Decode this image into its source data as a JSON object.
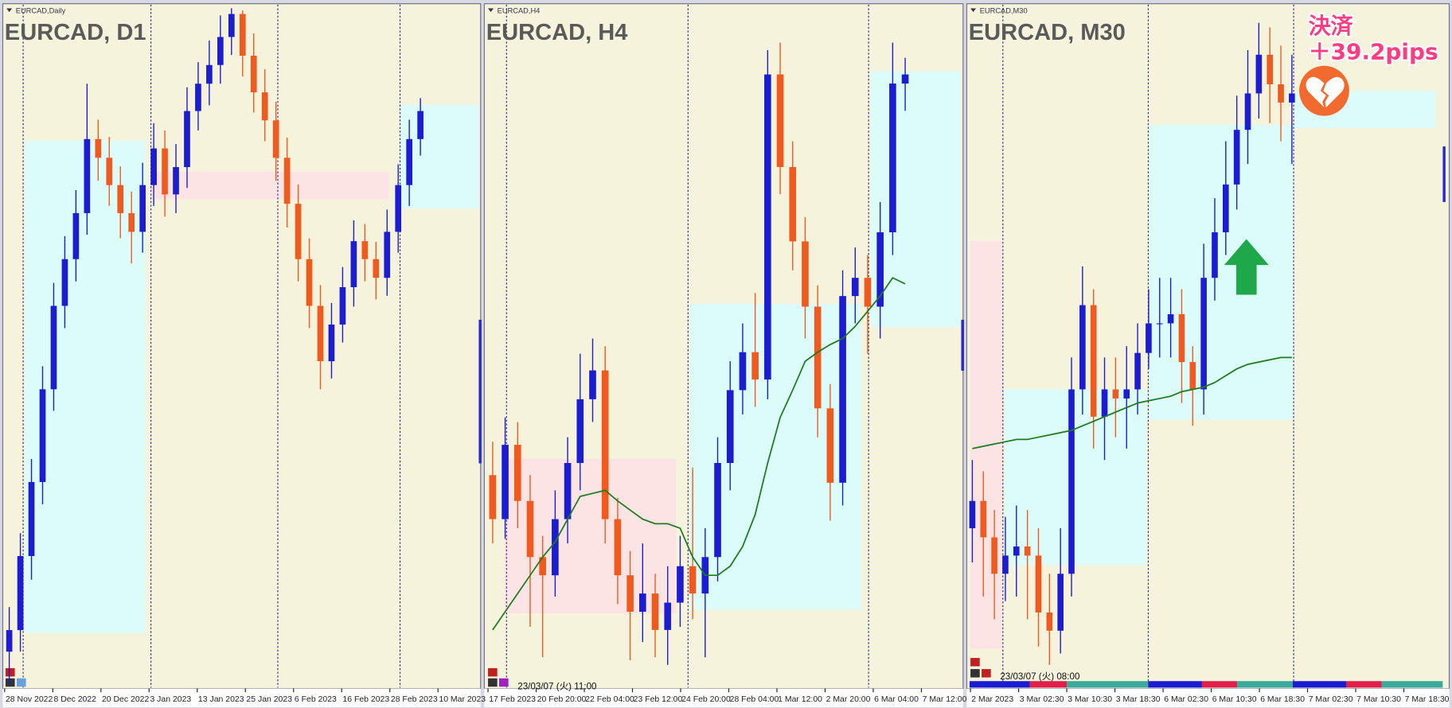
{
  "chart_data": [
    {
      "type": "candlestick",
      "label": "EURCAD,Daily",
      "title": "EURCAD, D1",
      "x_labels": [
        "28 Nov 2022",
        "8 Dec 2022",
        "20 Dec 2022",
        "3 Jan 2023",
        "13 Jan 2023",
        "25 Jan 2023",
        "6 Feb 2023",
        "16 Feb 2023",
        "28 Feb 2023",
        "10 Mar 2023"
      ],
      "ylim": [
        1.38,
        1.475
      ],
      "colors": {
        "up": "#1c1cd2",
        "down": "#f05a1e"
      },
      "open": [
        1.385,
        1.388,
        1.3983,
        1.4086,
        1.4215,
        1.4331,
        1.4396,
        1.446,
        1.4563,
        1.4537,
        1.4499,
        1.446,
        1.4434,
        1.4499,
        1.455,
        1.4486,
        1.4524,
        1.4602,
        1.464,
        1.4666,
        1.4705,
        1.4737,
        1.4679,
        1.4628,
        1.4589,
        1.4537,
        1.4473,
        1.4396,
        1.4331,
        1.4254,
        1.4305,
        1.4357,
        1.4421,
        1.4396,
        1.437,
        1.4434,
        1.4499,
        1.4563
      ],
      "high": [
        1.3912,
        1.4015,
        1.4118,
        1.4247,
        1.4363,
        1.4428,
        1.4492,
        1.464,
        1.459,
        1.4566,
        1.4525,
        1.449,
        1.453,
        1.4585,
        1.4575,
        1.4556,
        1.4635,
        1.467,
        1.47,
        1.4735,
        1.4745,
        1.4742,
        1.471,
        1.466,
        1.4615,
        1.4565,
        1.45,
        1.4425,
        1.436,
        1.4335,
        1.4385,
        1.445,
        1.4445,
        1.442,
        1.4465,
        1.4528,
        1.459,
        1.462
      ],
      "low": [
        1.3805,
        1.385,
        1.395,
        1.4055,
        1.4185,
        1.43,
        1.4365,
        1.443,
        1.4505,
        1.447,
        1.4425,
        1.439,
        1.4405,
        1.447,
        1.4455,
        1.446,
        1.4495,
        1.4575,
        1.461,
        1.464,
        1.468,
        1.465,
        1.46,
        1.456,
        1.4505,
        1.444,
        1.4365,
        1.43,
        1.4215,
        1.423,
        1.428,
        1.433,
        1.4365,
        1.434,
        1.4345,
        1.4405,
        1.447,
        1.454
      ],
      "close": [
        1.388,
        1.3983,
        1.4086,
        1.4215,
        1.4331,
        1.4396,
        1.446,
        1.4563,
        1.4537,
        1.4499,
        1.446,
        1.4434,
        1.4499,
        1.455,
        1.4486,
        1.4524,
        1.4602,
        1.464,
        1.4666,
        1.4705,
        1.4737,
        1.4679,
        1.4628,
        1.4589,
        1.4537,
        1.4473,
        1.4396,
        1.4331,
        1.4254,
        1.4305,
        1.4357,
        1.4421,
        1.4396,
        1.437,
        1.4434,
        1.4499,
        1.4563,
        1.4602
      ]
    },
    {
      "type": "candlestick",
      "label": "EURCAD,H4",
      "title": "EURCAD, H4",
      "timestamp": "23/03/07 (火) 11:00",
      "x_labels": [
        "17 Feb 2023",
        "20 Feb 20:00",
        "22 Feb 04:00",
        "23 Feb 12:00",
        "24 Feb 20:00",
        "28 Feb 04:00",
        "1 Mar 12:00",
        "2 Mar 20:00",
        "6 Mar 04:00",
        "7 Mar 12:00"
      ],
      "ylim": [
        1.43,
        1.475
      ],
      "colors": {
        "up": "#1c1cd2",
        "down": "#f05a1e"
      },
      "ma_color": "#1e7a1e",
      "open": [
        1.444,
        1.4411,
        1.446,
        1.4423,
        1.4386,
        1.4374,
        1.4411,
        1.4448,
        1.449,
        1.4509,
        1.4411,
        1.4374,
        1.435,
        1.4362,
        1.4338,
        1.4356,
        1.438,
        1.4362,
        1.4386,
        1.4448,
        1.4496,
        1.4521,
        1.4503,
        1.4704,
        1.4643,
        1.4594,
        1.4551,
        1.4484,
        1.4435,
        1.4558,
        1.457,
        1.4551,
        1.46,
        1.4698
      ],
      "high": [
        1.4462,
        1.4478,
        1.4475,
        1.444,
        1.44,
        1.443,
        1.4465,
        1.452,
        1.453,
        1.4525,
        1.4425,
        1.439,
        1.4395,
        1.4375,
        1.438,
        1.44,
        1.4445,
        1.4405,
        1.4465,
        1.4515,
        1.454,
        1.456,
        1.472,
        1.4725,
        1.466,
        1.461,
        1.4565,
        1.45,
        1.4575,
        1.459,
        1.4585,
        1.462,
        1.4725,
        1.4715
      ],
      "low": [
        1.4395,
        1.4398,
        1.4405,
        1.434,
        1.432,
        1.436,
        1.4395,
        1.443,
        1.4475,
        1.4395,
        1.4355,
        1.4318,
        1.433,
        1.432,
        1.4315,
        1.434,
        1.4345,
        1.432,
        1.437,
        1.443,
        1.448,
        1.4485,
        1.449,
        1.4625,
        1.4575,
        1.453,
        1.4465,
        1.441,
        1.442,
        1.454,
        1.452,
        1.453,
        1.4585,
        1.468
      ],
      "close": [
        1.4411,
        1.446,
        1.4423,
        1.4386,
        1.4374,
        1.4411,
        1.4448,
        1.449,
        1.4509,
        1.4411,
        1.4374,
        1.435,
        1.4362,
        1.4338,
        1.4356,
        1.438,
        1.4362,
        1.4386,
        1.4448,
        1.4496,
        1.4521,
        1.4503,
        1.4704,
        1.4643,
        1.4594,
        1.4551,
        1.4484,
        1.4435,
        1.4558,
        1.457,
        1.4551,
        1.46,
        1.4698,
        1.4704
      ],
      "ma": [
        1.4338,
        1.435,
        1.4362,
        1.4374,
        1.4386,
        1.4396,
        1.4411,
        1.4426,
        1.4428,
        1.443,
        1.4423,
        1.4417,
        1.4411,
        1.4408,
        1.4408,
        1.4405,
        1.4386,
        1.4374,
        1.4374,
        1.438,
        1.4393,
        1.4414,
        1.4448,
        1.4478,
        1.4496,
        1.4515,
        1.4521,
        1.4526,
        1.453,
        1.4538,
        1.4548,
        1.4558,
        1.457,
        1.4566
      ]
    },
    {
      "type": "candlestick",
      "label": "EURCAD,M30",
      "title": "EURCAD, M30",
      "timestamp": "23/03/07 (火) 08:00",
      "annotation": [
        "決済",
        "＋39.2pips"
      ],
      "x_labels": [
        "2 Mar 2023",
        "3 Mar 02:30",
        "3 Mar 10:30",
        "3 Mar 18:30",
        "6 Mar 02:30",
        "6 Mar 10:30",
        "6 Mar 18:30",
        "7 Mar 02:30",
        "7 Mar 10:30",
        "7 Mar 18:30"
      ],
      "ylim": [
        1.44,
        1.47
      ],
      "colors": {
        "up": "#1c1cd2",
        "down": "#f05a1e"
      },
      "ma_color": "#1e7a1e",
      "open": [
        1.447,
        1.4482,
        1.4466,
        1.445,
        1.4458,
        1.4462,
        1.4458,
        1.4433,
        1.4425,
        1.445,
        1.4531,
        1.4568,
        1.4519,
        1.4531,
        1.4527,
        1.4531,
        1.4547,
        1.456,
        1.456,
        1.4564,
        1.4543,
        1.4531,
        1.458,
        1.46,
        1.4621,
        1.4645,
        1.4661,
        1.4678,
        1.4665,
        1.4657
      ],
      "high": [
        1.45,
        1.4495,
        1.4478,
        1.4475,
        1.448,
        1.4478,
        1.447,
        1.445,
        1.447,
        1.4545,
        1.4585,
        1.4575,
        1.4545,
        1.4545,
        1.455,
        1.456,
        1.4575,
        1.458,
        1.458,
        1.4575,
        1.455,
        1.4595,
        1.4615,
        1.464,
        1.466,
        1.468,
        1.4692,
        1.469,
        1.4682,
        1.4678
      ],
      "low": [
        1.4455,
        1.444,
        1.443,
        1.4438,
        1.444,
        1.443,
        1.4418,
        1.441,
        1.4415,
        1.444,
        1.452,
        1.4505,
        1.45,
        1.451,
        1.4505,
        1.452,
        1.454,
        1.4545,
        1.4545,
        1.4525,
        1.4515,
        1.452,
        1.457,
        1.459,
        1.461,
        1.463,
        1.465,
        1.4648,
        1.464,
        1.463
      ],
      "close": [
        1.4482,
        1.4466,
        1.445,
        1.4458,
        1.4462,
        1.4458,
        1.4433,
        1.4425,
        1.445,
        1.4531,
        1.4568,
        1.4519,
        1.4531,
        1.4527,
        1.4531,
        1.4547,
        1.456,
        1.456,
        1.4564,
        1.4543,
        1.4531,
        1.458,
        1.46,
        1.4621,
        1.4645,
        1.4661,
        1.4678,
        1.4665,
        1.4657,
        1.4661
      ],
      "ma": [
        1.4505,
        1.4506,
        1.4507,
        1.4508,
        1.4509,
        1.4509,
        1.451,
        1.4511,
        1.4512,
        1.4513,
        1.4515,
        1.4517,
        1.4519,
        1.4521,
        1.4523,
        1.4525,
        1.4526,
        1.4527,
        1.4528,
        1.453,
        1.4531,
        1.4532,
        1.4534,
        1.4537,
        1.454,
        1.4542,
        1.4543,
        1.4544,
        1.4545,
        1.4545
      ]
    }
  ]
}
